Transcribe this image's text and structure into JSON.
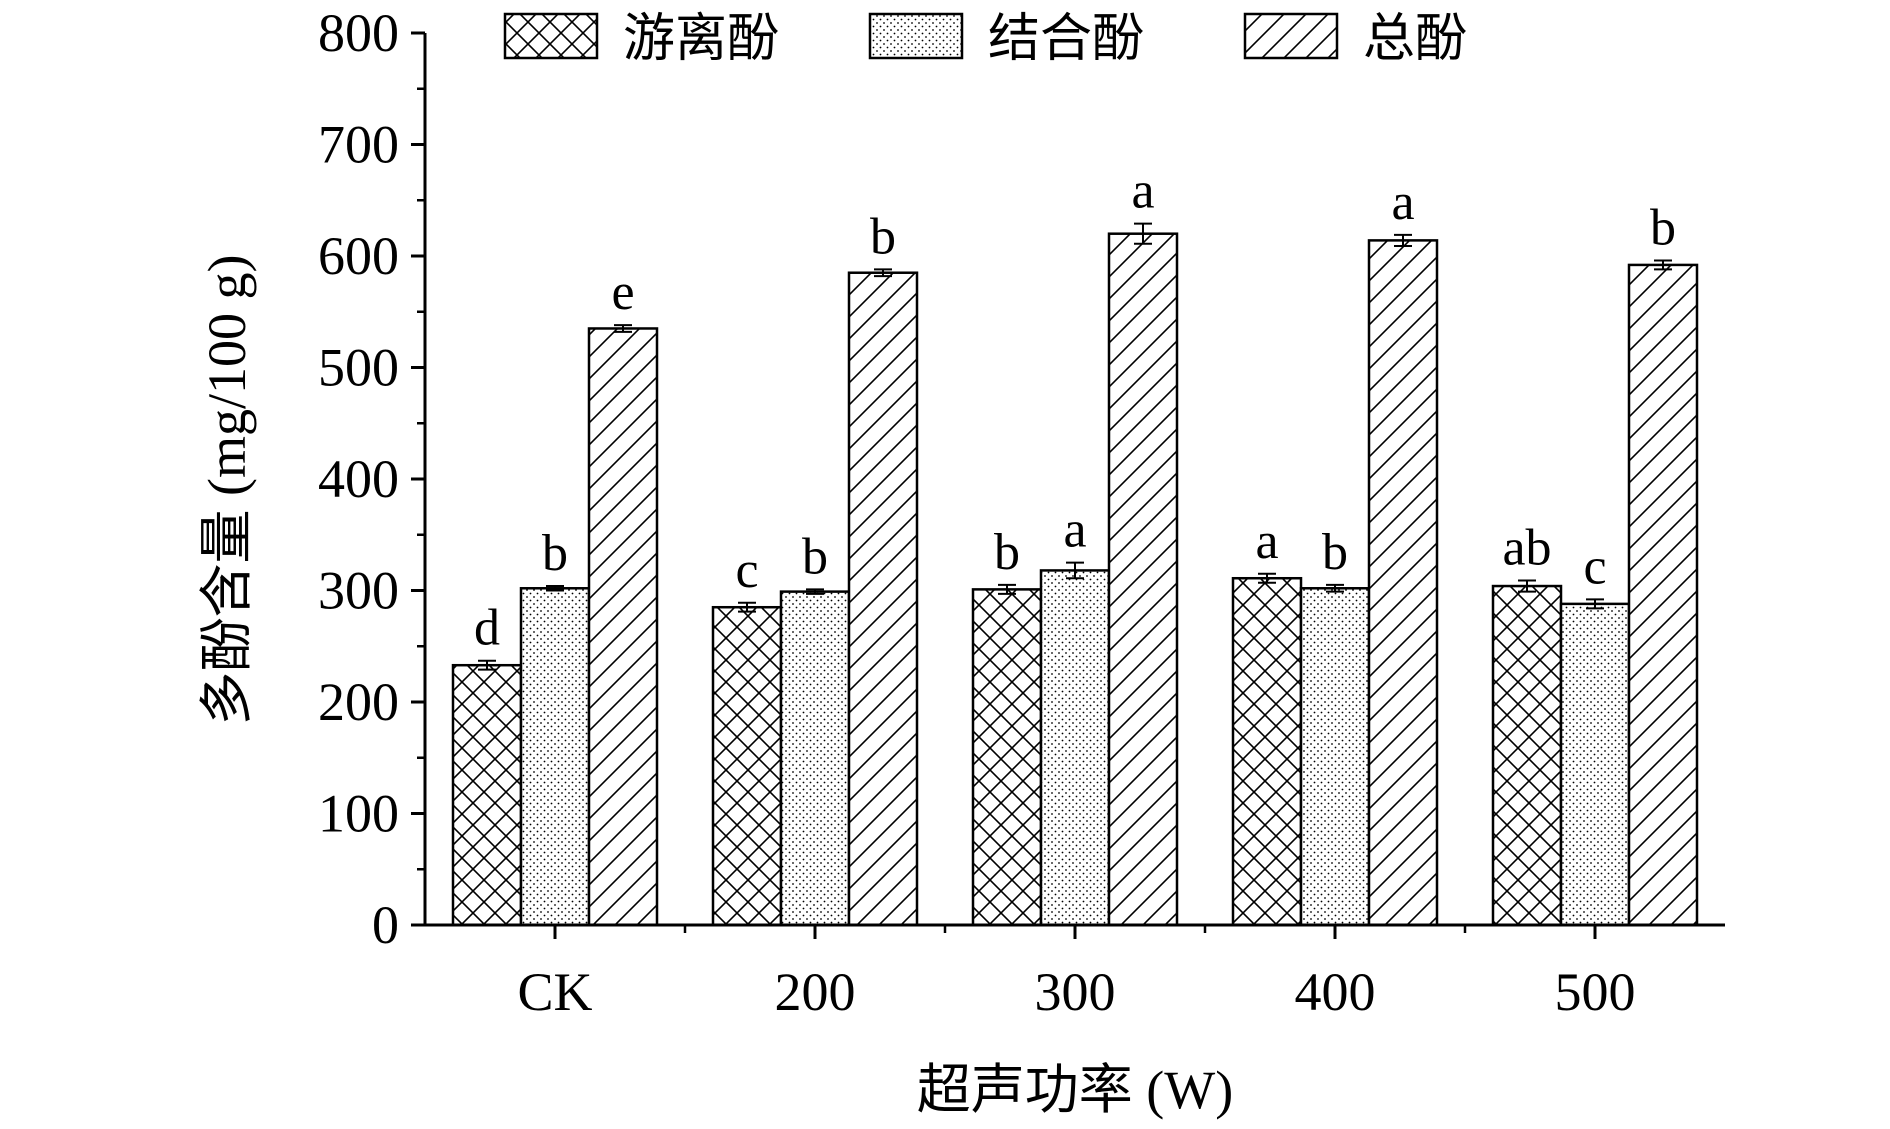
{
  "chart_data": {
    "type": "bar",
    "categories": [
      "CK",
      "200",
      "300",
      "400",
      "500"
    ],
    "xlabel": "超声功率 (W)",
    "ylabel": "多酚含量 (mg/100 g)",
    "ylim": [
      0,
      800
    ],
    "yticks": [
      0,
      100,
      200,
      300,
      400,
      500,
      600,
      700,
      800
    ],
    "legend_position": "top",
    "grid": false,
    "series": [
      {
        "name": "游离酚",
        "pattern": "crosshatch",
        "values": [
          233,
          285,
          301,
          311,
          304
        ],
        "errors": [
          4,
          4,
          4,
          4,
          5
        ],
        "labels": [
          "d",
          "c",
          "b",
          "a",
          "ab"
        ]
      },
      {
        "name": "结合酚",
        "pattern": "dots",
        "values": [
          302,
          299,
          318,
          302,
          288
        ],
        "errors": [
          2,
          2,
          7,
          3,
          4
        ],
        "labels": [
          "b",
          "b",
          "a",
          "b",
          "c"
        ]
      },
      {
        "name": "总酚",
        "pattern": "diagonal",
        "values": [
          535,
          585,
          620,
          614,
          592
        ],
        "errors": [
          3,
          3,
          9,
          5,
          4
        ],
        "labels": [
          "e",
          "b",
          "a",
          "a",
          "b"
        ]
      }
    ]
  }
}
